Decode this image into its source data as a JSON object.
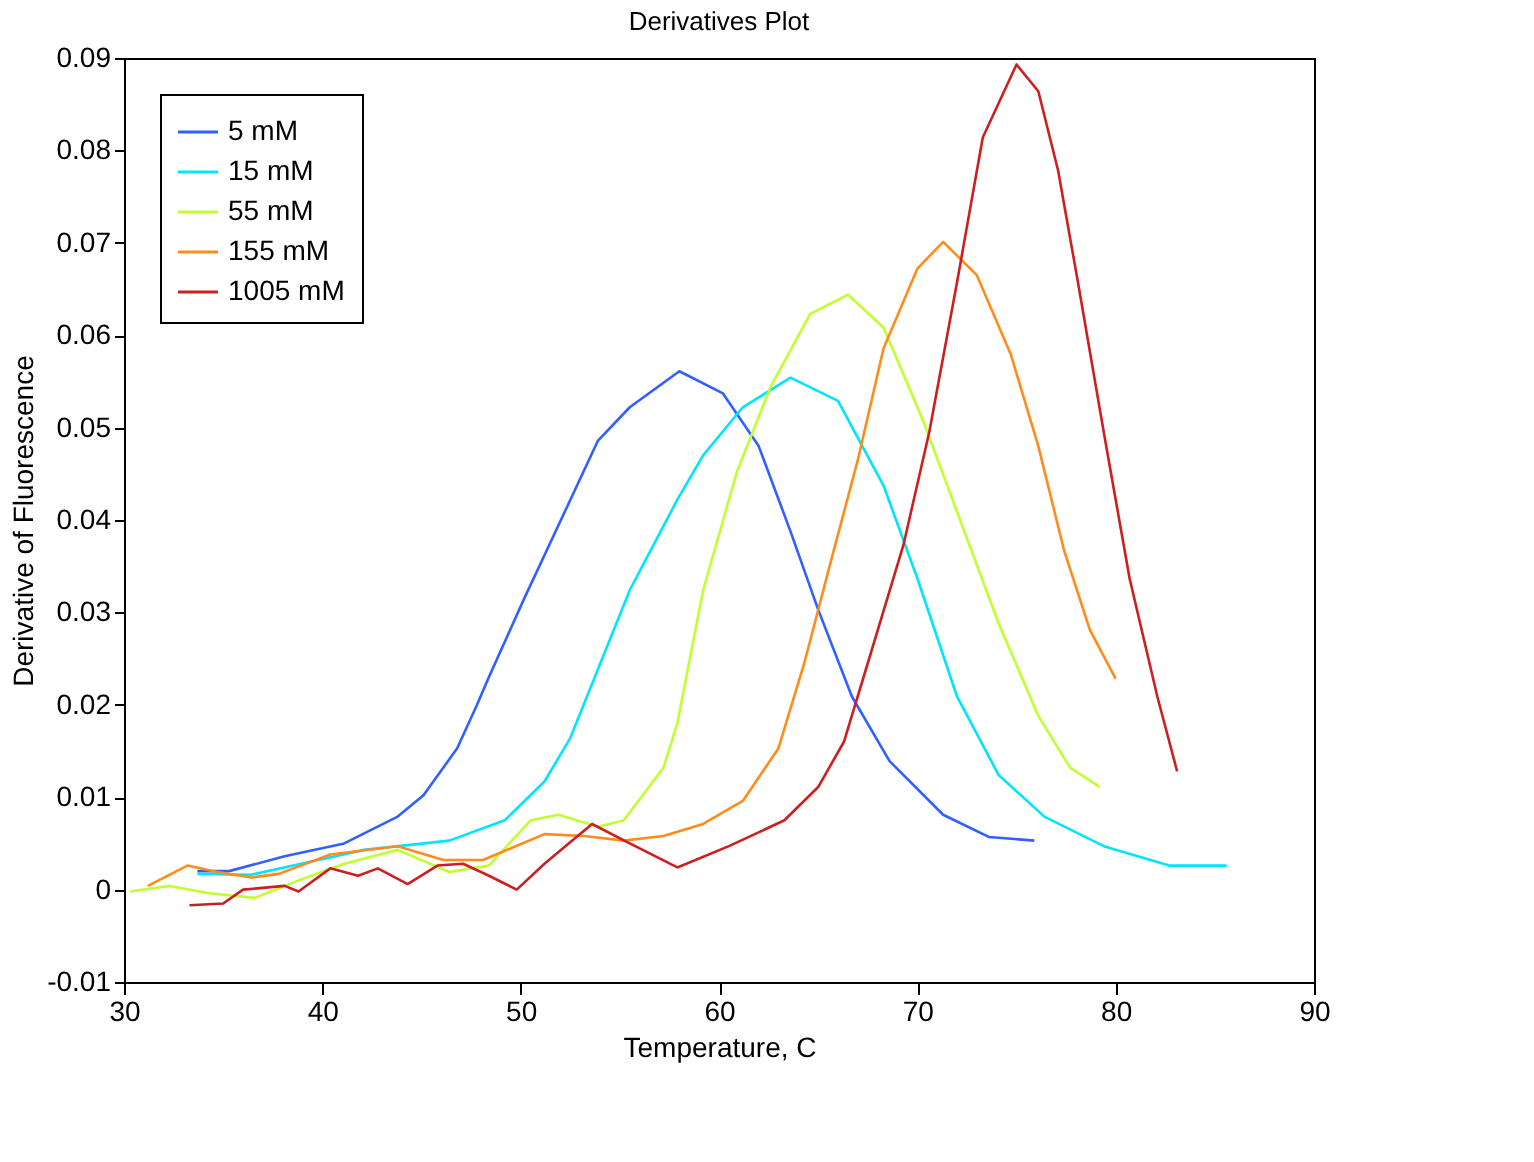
{
  "chart_data": {
    "type": "line",
    "title": "Derivatives Plot",
    "xlabel": "Temperature, C",
    "ylabel": "Derivative of Fluorescence",
    "xlim": [
      30,
      90
    ],
    "xticks": [
      30,
      40,
      50,
      60,
      70,
      80,
      90
    ],
    "ylim": [
      -0.01,
      0.09
    ],
    "yticks": [
      -0.01,
      0,
      0.01,
      0.02,
      0.03,
      0.04,
      0.05,
      0.06,
      0.07,
      0.08,
      0.09
    ],
    "grid": false,
    "legend": "top left",
    "marker": "none",
    "line_style": "solid",
    "series": [
      {
        "name": "5 mM",
        "color": "#3060ff",
        "x": [
          33.7,
          35.3,
          38.1,
          41.1,
          43.8,
          45.1,
          46.8,
          47.8,
          48.4,
          50.2,
          51.9,
          53.9,
          55.5,
          58.0,
          60.2,
          62.0,
          63.6,
          65.0,
          66.7,
          68.6,
          71.3,
          73.6,
          75.9
        ],
        "values": [
          0.002,
          0.002,
          0.0036,
          0.005,
          0.0079,
          0.0102,
          0.0153,
          0.02,
          0.023,
          0.0316,
          0.0394,
          0.0486,
          0.0522,
          0.0561,
          0.0537,
          0.048,
          0.0388,
          0.0303,
          0.0209,
          0.0139,
          0.0081,
          0.0057,
          0.0053
        ]
      },
      {
        "name": "15 mM",
        "color": "#00e5ff",
        "x": [
          33.7,
          36.4,
          39.8,
          42.1,
          46.4,
          49.2,
          51.2,
          52.5,
          55.5,
          57.9,
          59.2,
          61.2,
          63.6,
          66.0,
          68.3,
          70.0,
          72.0,
          74.1,
          76.4,
          79.4,
          82.7,
          85.6
        ],
        "values": [
          0.0017,
          0.0016,
          0.0032,
          0.0043,
          0.0053,
          0.0075,
          0.0117,
          0.0164,
          0.0324,
          0.0422,
          0.047,
          0.0522,
          0.0554,
          0.0529,
          0.0437,
          0.0337,
          0.0209,
          0.0124,
          0.0079,
          0.0047,
          0.0026,
          0.0026
        ]
      },
      {
        "name": "55 mM",
        "color": "#c0ff30",
        "x": [
          30.3,
          32.3,
          34.3,
          36.6,
          38.8,
          41.1,
          43.8,
          46.4,
          48.4,
          50.5,
          51.9,
          53.9,
          55.2,
          57.2,
          57.9,
          59.2,
          60.9,
          62.6,
          64.6,
          66.5,
          68.3,
          70.3,
          72.0,
          74.1,
          76.1,
          77.7,
          79.2
        ],
        "values": [
          -0.0002,
          0.0004,
          -0.0004,
          -0.0009,
          0.001,
          0.0028,
          0.0043,
          0.0019,
          0.0026,
          0.0075,
          0.0081,
          0.0068,
          0.0075,
          0.0132,
          0.018,
          0.0324,
          0.0452,
          0.0544,
          0.0623,
          0.0644,
          0.0608,
          0.0507,
          0.0409,
          0.0288,
          0.0188,
          0.0132,
          0.0111
        ]
      },
      {
        "name": "155 mM",
        "color": "#ff8c1a",
        "x": [
          31.2,
          33.2,
          34.7,
          36.4,
          37.8,
          40.4,
          43.8,
          46.1,
          48.1,
          51.2,
          53.2,
          55.2,
          57.2,
          59.2,
          61.2,
          63.0,
          64.3,
          65.6,
          67.0,
          68.3,
          70.0,
          71.3,
          73.0,
          74.7,
          76.1,
          77.4,
          78.7,
          80.0
        ],
        "values": [
          0.0004,
          0.0026,
          0.0019,
          0.0013,
          0.0017,
          0.0038,
          0.0047,
          0.0032,
          0.0032,
          0.006,
          0.0058,
          0.0053,
          0.0058,
          0.0071,
          0.0096,
          0.0153,
          0.0245,
          0.0352,
          0.0465,
          0.0586,
          0.0672,
          0.0701,
          0.0665,
          0.058,
          0.048,
          0.0367,
          0.0281,
          0.0228
        ]
      },
      {
        "name": "1005 mM",
        "color": "#cc1f1f",
        "x": [
          33.3,
          35.0,
          36.0,
          38.1,
          38.8,
          40.4,
          41.8,
          42.8,
          44.3,
          45.8,
          47.1,
          48.4,
          49.8,
          51.2,
          53.6,
          55.5,
          57.9,
          60.5,
          63.3,
          65.0,
          66.3,
          67.6,
          69.3,
          70.6,
          72.0,
          73.3,
          75.0,
          76.1,
          77.1,
          78.1,
          79.4,
          80.7,
          82.1,
          83.1
        ],
        "values": [
          -0.0017,
          -0.0015,
          0.0,
          0.0004,
          -0.0002,
          0.0023,
          0.0015,
          0.0023,
          0.0006,
          0.0026,
          0.0028,
          0.0015,
          0.0,
          0.0028,
          0.0071,
          0.005,
          0.0024,
          0.0047,
          0.0075,
          0.0111,
          0.016,
          0.0252,
          0.0373,
          0.0495,
          0.0657,
          0.0814,
          0.0893,
          0.0864,
          0.0778,
          0.0657,
          0.0495,
          0.0337,
          0.0209,
          0.0128
        ]
      }
    ]
  }
}
